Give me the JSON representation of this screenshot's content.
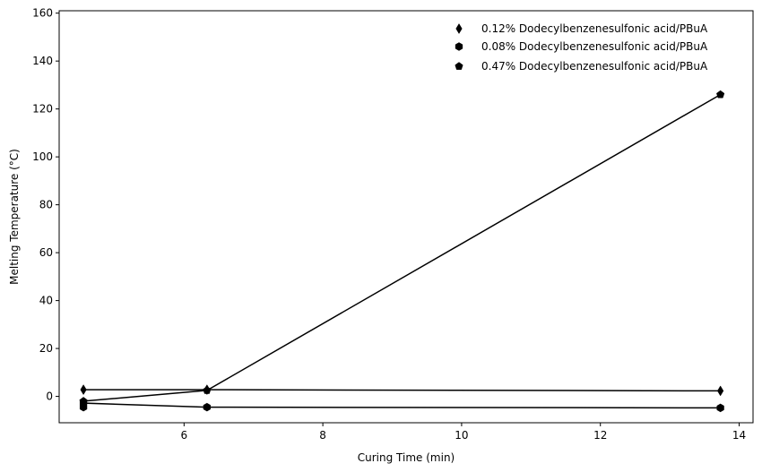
{
  "chart_data": {
    "type": "line",
    "title": "",
    "xlabel": "Curing Time (min)",
    "ylabel": "Melting Temperature (°C)",
    "xlim": [
      4.2,
      14.2
    ],
    "ylim": [
      -11,
      161
    ],
    "xticks": [
      6,
      8,
      10,
      12,
      14
    ],
    "yticks": [
      0,
      20,
      40,
      60,
      80,
      100,
      120,
      140,
      160
    ],
    "grid": false,
    "legend_position": "top-right",
    "colors": {
      "series": "#000000",
      "axes": "#000000",
      "background": "#ffffff"
    },
    "series": [
      {
        "name": "0.12% Dodecylbenzenesulfonic acid/PBuA",
        "marker": "thin-diamond",
        "x": [
          4.55,
          6.33,
          13.73
        ],
        "y": [
          2.8,
          2.8,
          2.3
        ]
      },
      {
        "name": "0.08% Dodecylbenzenesulfonic acid/PBuA",
        "marker": "hexagon",
        "x": [
          4.55,
          4.55,
          6.33,
          13.73
        ],
        "y": [
          -4.5,
          -2.8,
          -4.5,
          -4.8
        ]
      },
      {
        "name": "0.47% Dodecylbenzenesulfonic acid/PBuA",
        "marker": "pentagon",
        "x": [
          4.55,
          6.33,
          13.73
        ],
        "y": [
          -2.0,
          2.5,
          126.0
        ]
      }
    ]
  }
}
